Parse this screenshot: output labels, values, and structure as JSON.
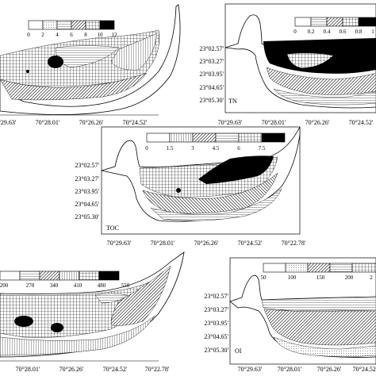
{
  "panels": {
    "topleft": {
      "name": "",
      "legend": [
        "0",
        "2",
        "4",
        "6",
        "8",
        "10",
        "12"
      ],
      "longitudes": [
        "70°29.63'",
        "70°28.01'",
        "70°26.26'",
        "70°24.52'",
        "70°22.78'"
      ]
    },
    "topright": {
      "name": "TN",
      "legend": [
        "0",
        "0.2",
        "0.4",
        "0.6",
        "0.8",
        "1"
      ],
      "latitudes": [
        "23°02.57'",
        "23°03.27'",
        "23°03.95'",
        "23°04.65'",
        "23°05.30'"
      ],
      "longitudes": [
        "70°29.63'",
        "70°28.01'",
        "70°26.26'",
        "70°24.52'"
      ]
    },
    "middle": {
      "name": "TOC",
      "legend": [
        "0",
        "1.5",
        "3",
        "4.5",
        "6",
        "7.5"
      ],
      "latitudes": [
        "23°02.57'",
        "23°03.27'",
        "23°03.95'",
        "23°04.65'",
        "23°05.30'"
      ],
      "longitudes": [
        "70°29.63'",
        "70°28.01'",
        "70°26.26'",
        "70°24.52'",
        "70°22.78'"
      ]
    },
    "bottomleft": {
      "name": "",
      "legend": [
        "200",
        "270",
        "340",
        "410",
        "480",
        "550"
      ],
      "longitudes": [
        "70°28.01'",
        "70°26.26'",
        "70°24.52'",
        "70°22.78'"
      ]
    },
    "bottomright": {
      "name": "OI",
      "legend": [
        "50",
        "100",
        "150",
        "200",
        "2"
      ],
      "latitudes": [
        "23°02.57'",
        "23°03.27'",
        "23°03.95'",
        "23°04.65'",
        "23°05.30'"
      ],
      "longitudes": [
        "70°29.63'",
        "70°28.01'",
        "70°26.26'",
        "70°24.52'",
        "70°2"
      ]
    }
  }
}
